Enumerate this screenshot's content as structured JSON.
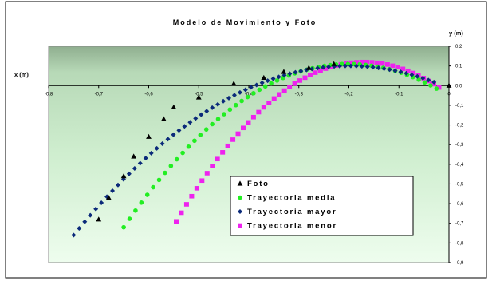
{
  "chart_data": {
    "type": "scatter",
    "title": "Modelo de Movimiento y Foto",
    "xlabel": "x (m)",
    "ylabel": "y (m)",
    "xlim": [
      -0.8,
      0
    ],
    "ylim": [
      -0.9,
      0.2
    ],
    "x_ticks": [
      "-0,8",
      "-0,7",
      "-0,6",
      "-0,5",
      "-0,4",
      "-0,3",
      "-0,2",
      "-0,1",
      "0"
    ],
    "y_ticks": [
      "0,2",
      "0,1",
      "0,0",
      "-0,1",
      "-0,2",
      "-0,3",
      "-0,4",
      "-0,5",
      "-0,6",
      "-0,7",
      "-0,8",
      "-0,9"
    ],
    "legend_position": "bottom-right",
    "series": [
      {
        "name": "Foto",
        "marker": "triangle",
        "color": "#000000",
        "points": [
          [
            0,
            0
          ],
          [
            -0.23,
            0.11
          ],
          [
            -0.28,
            0.09
          ],
          [
            -0.33,
            0.07
          ],
          [
            -0.37,
            0.04
          ],
          [
            -0.43,
            0.01
          ],
          [
            -0.5,
            -0.06
          ],
          [
            -0.55,
            -0.11
          ],
          [
            -0.57,
            -0.17
          ],
          [
            -0.6,
            -0.26
          ],
          [
            -0.63,
            -0.36
          ],
          [
            -0.65,
            -0.46
          ],
          [
            -0.68,
            -0.57
          ],
          [
            -0.7,
            -0.68
          ]
        ]
      },
      {
        "name": "Trayectoria media",
        "marker": "circle",
        "color": "#22ee22",
        "curve": {
          "x_start": -0.65,
          "x_end": -0.025,
          "vertex_x": -0.2,
          "vertex_y": 0.11,
          "y_at_start": -0.72,
          "count": 54
        }
      },
      {
        "name": "Trayectoria mayor",
        "marker": "diamond",
        "color": "#0b2a7a",
        "curve": {
          "x_start": -0.75,
          "x_end": -0.03,
          "vertex_x": -0.2,
          "vertex_y": 0.1,
          "y_at_start": -0.76,
          "count": 66
        }
      },
      {
        "name": "Trayectoria menor",
        "marker": "square",
        "color": "#ee22ee",
        "curve": {
          "x_start": -0.545,
          "x_end": -0.02,
          "vertex_x": -0.17,
          "vertex_y": 0.12,
          "y_at_start": -0.69,
          "count": 52
        }
      }
    ]
  }
}
